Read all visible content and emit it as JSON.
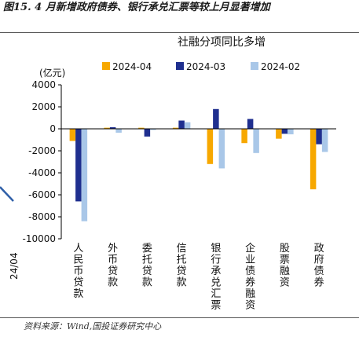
{
  "figure": {
    "title": "图15. 4 月新增政府债券、银行承兑汇票等较上月显著增加",
    "source": "资料来源：Wind,国投证券研究中心",
    "left_fragment_label": "24/04"
  },
  "colors": {
    "2024-04": "#f7a800",
    "2024-03": "#1f2f8f",
    "2024-02": "#a9c7e8",
    "fragment_line": "#2f5fa8"
  },
  "chart_data": {
    "type": "bar",
    "title": "社融分项同比多增",
    "ylabel": "(亿元)",
    "ylim": [
      -10000,
      4000
    ],
    "yticks": [
      -10000,
      -8000,
      -6000,
      -4000,
      -2000,
      0,
      2000,
      4000
    ],
    "ytick_labels": [
      "-10000",
      "-8000",
      "-6000",
      "-4000",
      "-2000",
      "0",
      "2000",
      "4000"
    ],
    "legend_position": "top",
    "grid": false,
    "categories": [
      "人民币贷款",
      "外币贷款",
      "委托贷款",
      "信托贷款",
      "银行承兑汇票",
      "企业债券融资",
      "股票融资",
      "政府债券"
    ],
    "series": [
      {
        "name": "2024-04",
        "values": [
          -1100,
          100,
          100,
          100,
          -3200,
          -1300,
          -900,
          -5500
        ]
      },
      {
        "name": "2024-03",
        "values": [
          -6600,
          150,
          -700,
          750,
          1800,
          900,
          -450,
          -1400
        ]
      },
      {
        "name": "2024-02",
        "values": [
          -8400,
          -350,
          -100,
          600,
          -3600,
          -2200,
          -500,
          -2100
        ]
      }
    ]
  }
}
